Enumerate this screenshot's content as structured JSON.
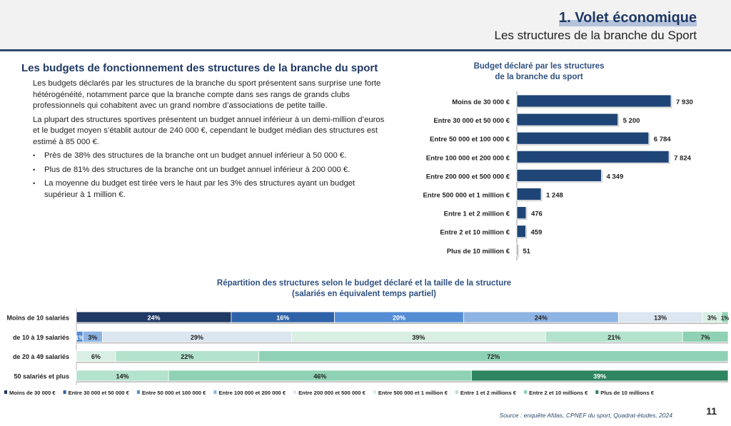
{
  "header": {
    "title": "1. Volet économique",
    "subtitle": "Les structures de la branche du Sport"
  },
  "section": {
    "title": "Les budgets de fonctionnement des structures de la branche du sport",
    "paragraphs": [
      "Les budgets déclarés par les structures de la branche du sport présentent sans surprise une forte hétérogénéité, notamment parce que la branche compte dans ses rangs de grands clubs professionnels qui cohabitent avec un grand nombre d’associations de petite taille.",
      "La plupart des structures sportives présentent un budget annuel inférieur à un demi-million d’euros et le budget moyen s’établit autour de 240 000 €, cependant le budget médian des structures est estimé à 85 000 €."
    ],
    "bullets": [
      "Près de 38% des structures de la branche ont un budget annuel inférieur à 50 000 €.",
      "Plus de 81% des structures de la branche ont un budget annuel inférieur à 200 000 €.",
      "La moyenne du budget est tirée vers le haut par les 3% des structures ayant un budget supérieur à 1 million €."
    ]
  },
  "chart_data": [
    {
      "type": "bar",
      "orientation": "horizontal",
      "title": "Budget déclaré par les structures\nde la branche du sport",
      "categories": [
        "Moins de 30 000 €",
        "Entre 30 000 et 50 000 €",
        "Entre 50 000 et 100 000 €",
        "Entre 100 000 et 200 000 €",
        "Entre 200 000 et 500 000 €",
        "Entre 500 000 et 1 million €",
        "Entre 1 et 2 million €",
        "Entre 2 et 10 million €",
        "Plus de 10 million €"
      ],
      "values": [
        7930,
        5200,
        6784,
        7824,
        4349,
        1248,
        476,
        459,
        51
      ],
      "data_labels": [
        "7 930",
        "5 200",
        "6 784",
        "7 824",
        "4 349",
        "1 248",
        "476",
        "459",
        "51"
      ],
      "color": "#1f4576",
      "grid": false
    },
    {
      "type": "bar",
      "orientation": "horizontal",
      "stacked": "percent",
      "title": "Répartition des structures selon le budget déclaré et la taille de la structure\n(salariés en équivalent temps partiel)",
      "categories": [
        "Moins de 10 salariés",
        "de 10 à 19 salariés",
        "de 20 à 49 salariés",
        "50 salariés et plus"
      ],
      "series": [
        {
          "name": "Moins de 30 000 €",
          "color": "#1f3864",
          "values": [
            24,
            0,
            0,
            0
          ]
        },
        {
          "name": "Entre 30 000 et 50 000 €",
          "color": "#2e62a8",
          "values": [
            16,
            0,
            0,
            0
          ]
        },
        {
          "name": "Entre 50 000 et 100 000 €",
          "color": "#548dd4",
          "values": [
            20,
            1,
            0,
            0
          ]
        },
        {
          "name": "Entre 100 000 et 200 000 €",
          "color": "#8eb4e3",
          "values": [
            24,
            3,
            0,
            0
          ]
        },
        {
          "name": "Entre 200 000 et 500 000 €",
          "color": "#dce6f0",
          "values": [
            13,
            29,
            0,
            0
          ]
        },
        {
          "name": "Entre 500 000 et 1 million €",
          "color": "#d9efe4",
          "values": [
            3,
            39,
            6,
            0
          ]
        },
        {
          "name": "Entre 1 et 2 millions €",
          "color": "#b3e2cd",
          "values": [
            0,
            21,
            22,
            14
          ]
        },
        {
          "name": "Entre 2 et 10 millions €",
          "color": "#8fd1b4",
          "values": [
            1,
            7,
            72,
            46
          ]
        },
        {
          "name": "Plus de 10 millions €",
          "color": "#2f8560",
          "values": [
            0,
            0,
            0,
            39
          ]
        }
      ],
      "legend": "bottom",
      "grid": false
    }
  ],
  "footer": {
    "source": "Source : enquête Afdas, CPNEF du sport, Quadrat-études, 2024",
    "page": "11"
  }
}
